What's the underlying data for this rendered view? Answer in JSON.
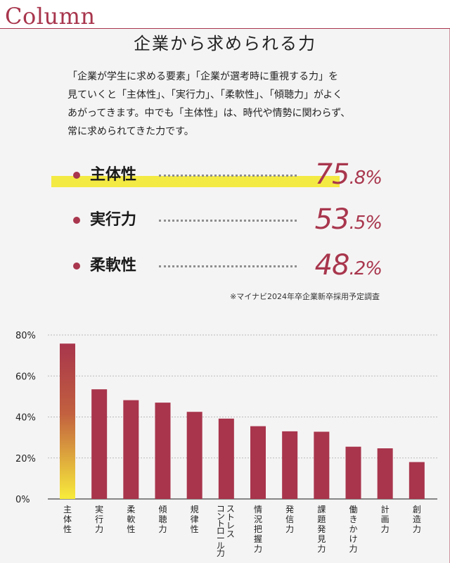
{
  "header": {
    "badge": "Column",
    "title": "企業から求められる力"
  },
  "lead": [
    "「企業が学生に求める要素」「企業が選考時に重視する力」を",
    "見ていくと「主体性」、「実行力」、「柔軟性」、「傾聴力」がよく",
    "あがってきます。中でも「主体性」は、時代や情勢に関わらず、",
    "常に求められてきた力です。"
  ],
  "stats": [
    {
      "label": "主体性",
      "int": "75",
      "dec": ".8%",
      "highlighted": true
    },
    {
      "label": "実行力",
      "int": "53",
      "dec": ".5%",
      "highlighted": false
    },
    {
      "label": "柔軟性",
      "int": "48",
      "dec": ".2%",
      "highlighted": false
    }
  ],
  "source": "※マイナビ2024年卒企業新卒採用予定調査",
  "colors": {
    "accent": "#a8364d",
    "bar": "#a8354c",
    "highlight": "#f4ea44",
    "gradient_top": "#a8354c",
    "gradient_bottom": "#f8ec3b"
  },
  "chart_data": {
    "type": "bar",
    "categories": [
      "主体性",
      "実行力",
      "柔軟性",
      "傾聴力",
      "規律性",
      "ストレスコントロール力",
      "情況把握力",
      "発信力",
      "課題発見力",
      "働きかけ力",
      "計画力",
      "創造力"
    ],
    "category_lines": [
      [
        "主",
        "体",
        "性"
      ],
      [
        "実",
        "行",
        "力"
      ],
      [
        "柔",
        "軟",
        "性"
      ],
      [
        "傾",
        "聴",
        "力"
      ],
      [
        "規",
        "律",
        "性"
      ],
      [
        "ス",
        "ト",
        "レ",
        "ス"
      ],
      [
        "情",
        "況",
        "把",
        "握",
        "力"
      ],
      [
        "発",
        "信",
        "力"
      ],
      [
        "課",
        "題",
        "発",
        "見",
        "力"
      ],
      [
        "働",
        "き",
        "か",
        "け",
        "力"
      ],
      [
        "計",
        "画",
        "力"
      ],
      [
        "創",
        "造",
        "力"
      ]
    ],
    "category_lines_b": [
      "コントロール力"
    ],
    "values": [
      75.8,
      53.5,
      48.2,
      47.0,
      42.5,
      39.2,
      35.5,
      33.0,
      32.8,
      25.5,
      24.7,
      18.0
    ],
    "ylim": [
      0,
      80
    ],
    "yticks": [
      "0%",
      "20%",
      "40%",
      "60%",
      "80%"
    ],
    "grid": true,
    "legend": "none"
  }
}
